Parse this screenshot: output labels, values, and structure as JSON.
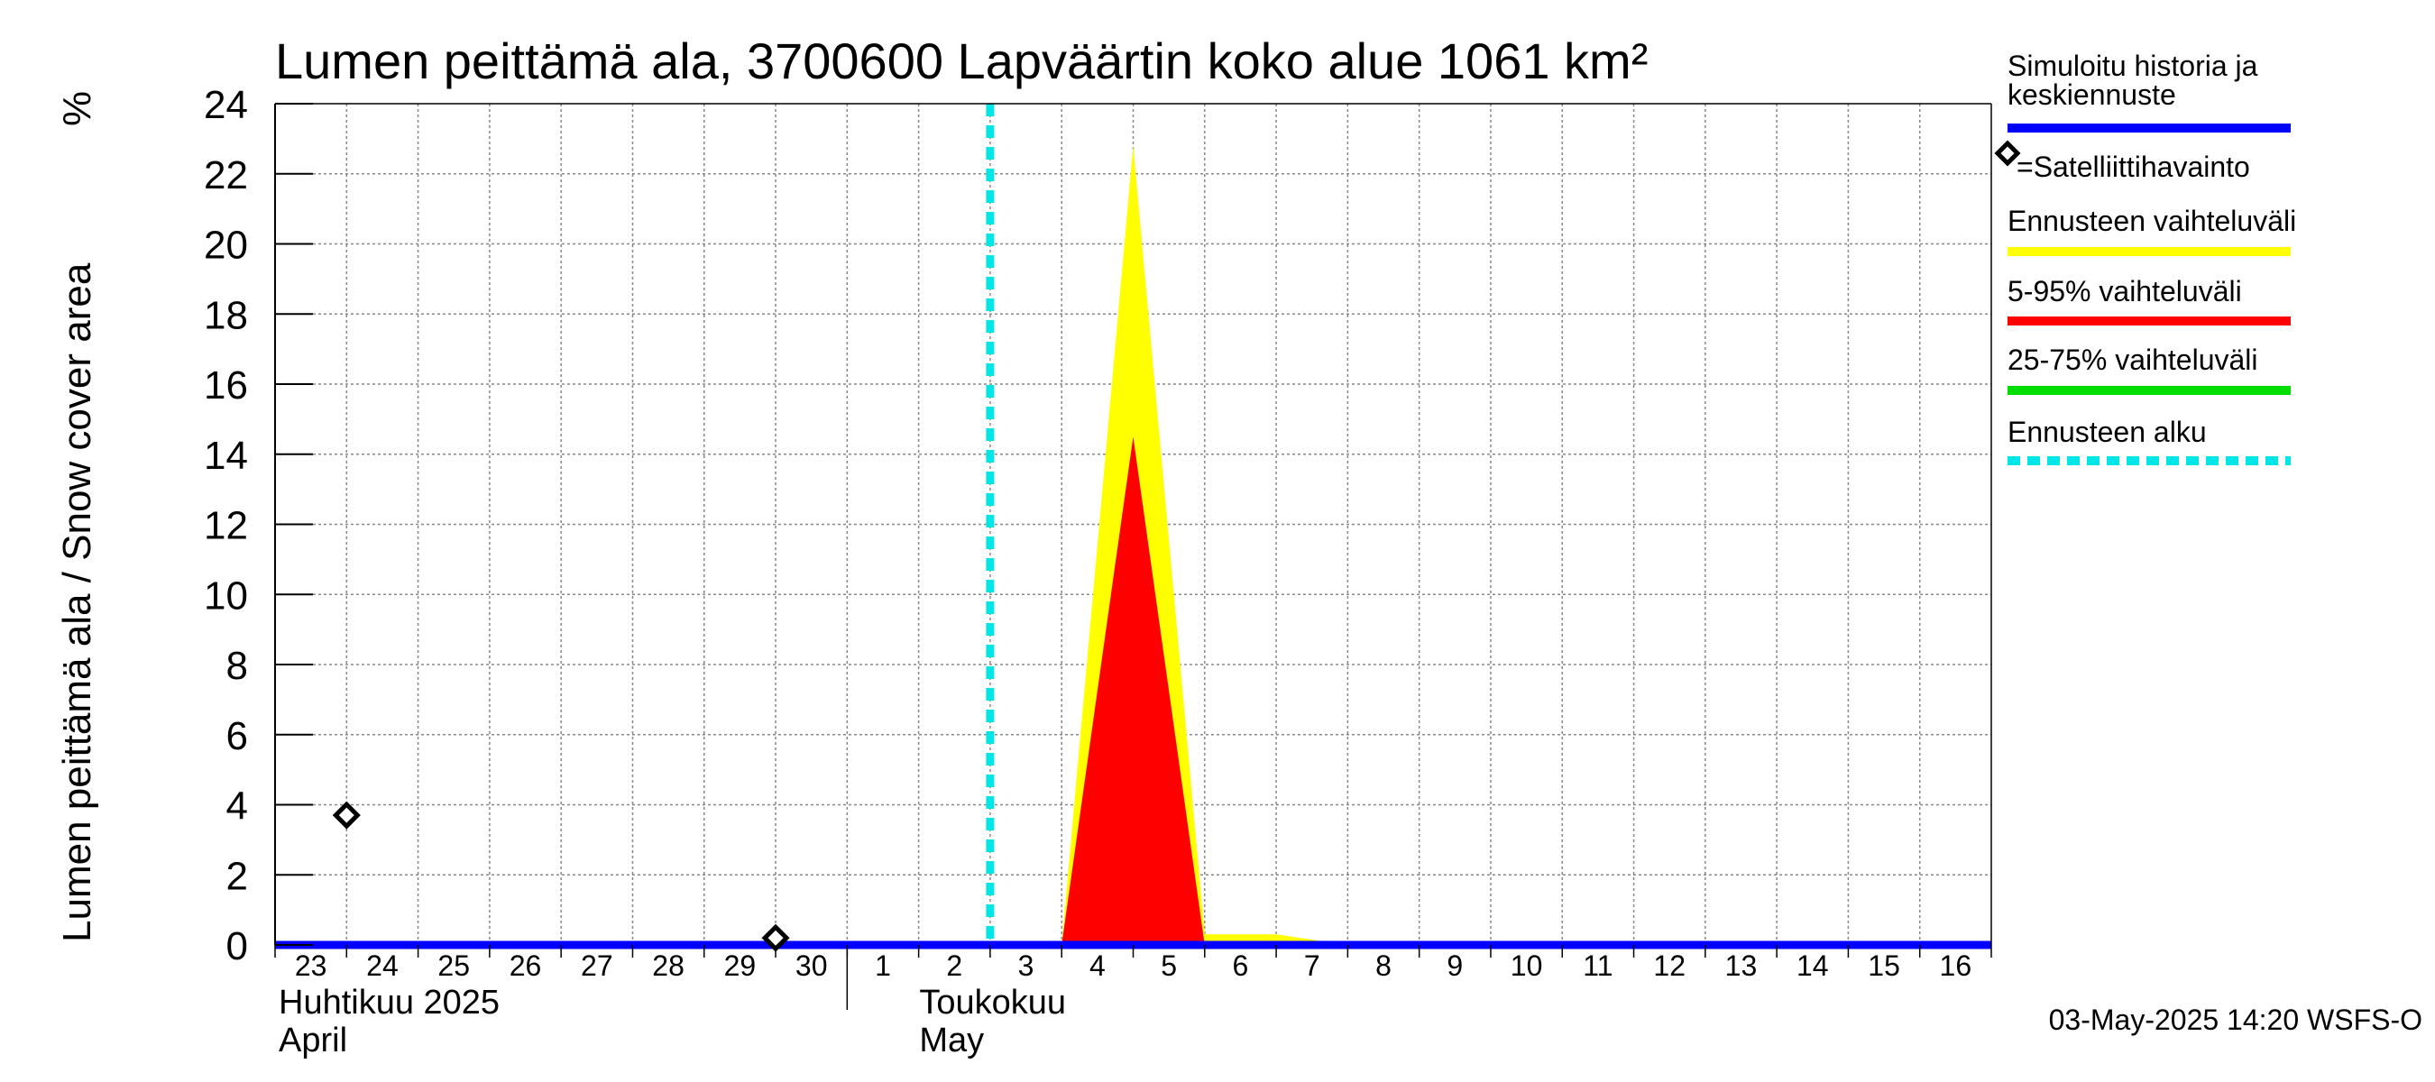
{
  "chart_data": {
    "type": "area",
    "title": "Lumen peittämä ala, 3700600 Lapväärtin koko alue 1061 km²",
    "ylabel": "Lumen peittämä ala / Snow cover area",
    "yunit": "%",
    "ylim": [
      0,
      24
    ],
    "yticks": [
      "0",
      "2",
      "4",
      "6",
      "8",
      "10",
      "12",
      "14",
      "16",
      "18",
      "20",
      "22",
      "24"
    ],
    "xlim": [
      "2025-04-23",
      "2025-05-17"
    ],
    "xtick_labels": [
      "23",
      "24",
      "25",
      "26",
      "27",
      "28",
      "29",
      "30",
      "1",
      "2",
      "3",
      "4",
      "5",
      "6",
      "7",
      "8",
      "9",
      "10",
      "11",
      "12",
      "13",
      "14",
      "15",
      "16"
    ],
    "month_labels": [
      {
        "fi": "Huhtikuu  2025",
        "en": "April"
      },
      {
        "fi": "Toukokuu",
        "en": "May"
      }
    ],
    "grid": true,
    "series": [
      {
        "name": "Simuloitu historia ja keskiennuste",
        "kind": "line",
        "color": "#0000ff",
        "x": [
          "2025-04-23",
          "2025-05-17"
        ],
        "values": [
          0,
          0
        ]
      },
      {
        "name": "Ennusteen vaihteluväli",
        "kind": "band",
        "color": "#ffff00",
        "x": [
          "2025-05-04",
          "2025-05-05",
          "2025-05-06",
          "2025-05-07",
          "2025-05-08"
        ],
        "values": [
          0,
          22.8,
          0.3,
          0.3,
          0
        ]
      },
      {
        "name": "5-95% vaihteluväli",
        "kind": "band",
        "color": "#ff0000",
        "x": [
          "2025-05-04",
          "2025-05-05",
          "2025-05-06"
        ],
        "values": [
          0,
          14.5,
          0
        ]
      },
      {
        "name": "25-75% vaihteluväli",
        "kind": "band",
        "color": "#00dd00",
        "x": [],
        "values": []
      }
    ],
    "observations": {
      "name": "=Satelliittihavainto",
      "points": [
        {
          "x": "2025-04-24",
          "y": 3.7
        },
        {
          "x": "2025-04-30",
          "y": 0.2
        }
      ]
    },
    "forecast_start": {
      "name": "Ennusteen alku",
      "x": "2025-05-03",
      "color": "#00e5e5"
    },
    "legend_position": "right",
    "legend": [
      {
        "label": "Simuloitu historia ja",
        "label2": "keskiennuste",
        "color": "#0000ff",
        "style": "line"
      },
      {
        "label": "=Satelliittihavainto",
        "color": "#000000",
        "style": "diamond"
      },
      {
        "label": "Ennusteen vaihteluväli",
        "color": "#ffff00",
        "style": "line"
      },
      {
        "label": "5-95% vaihteluväli",
        "color": "#ff0000",
        "style": "line"
      },
      {
        "label": "25-75% vaihteluväli",
        "color": "#00dd00",
        "style": "line"
      },
      {
        "label": "Ennusteen alku",
        "color": "#00e5e5",
        "style": "dashed"
      }
    ],
    "footer": "03-May-2025 14:20 WSFS-O"
  }
}
